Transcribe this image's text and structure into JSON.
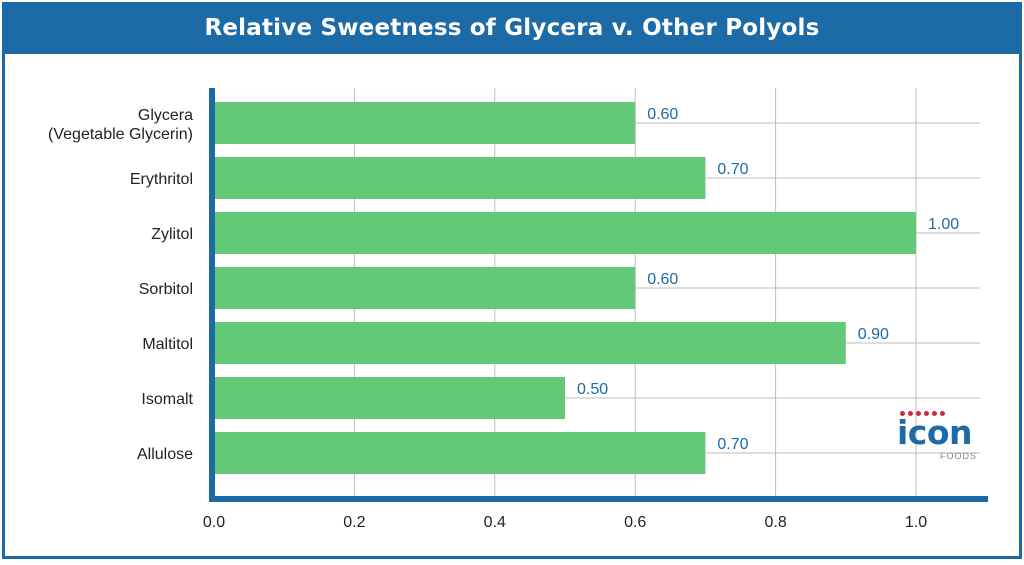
{
  "title": "Relative Sweetness of Glycera v. Other Polyols",
  "colors": {
    "header": "#1c6aa6",
    "bar": "#63c878",
    "value_label": "#1c6aa6",
    "axis": "#1c6aa6",
    "grid": "#bdbdbd",
    "text": "#222222"
  },
  "logo": {
    "word": "icon",
    "sub": "FOODS"
  },
  "chart_data": {
    "type": "bar",
    "orientation": "horizontal",
    "categories": [
      [
        "Glycera",
        "(Vegetable Glycerin)"
      ],
      [
        "Erythritol"
      ],
      [
        "Zylitol"
      ],
      [
        "Sorbitol"
      ],
      [
        "Maltitol"
      ],
      [
        "Isomalt"
      ],
      [
        "Allulose"
      ]
    ],
    "values": [
      0.6,
      0.7,
      1.0,
      0.6,
      0.9,
      0.5,
      0.7
    ],
    "value_labels": [
      "0.60",
      "0.70",
      "1.00",
      "0.60",
      "0.90",
      "0.50",
      "0.70"
    ],
    "xlim": [
      0,
      1.1
    ],
    "xticks": [
      0,
      0.2,
      0.4,
      0.6,
      0.8,
      1.0
    ],
    "xtick_labels": [
      "0.0",
      "0.2",
      "0.4",
      "0.6",
      "0.8",
      "1.0"
    ],
    "grid": true
  }
}
